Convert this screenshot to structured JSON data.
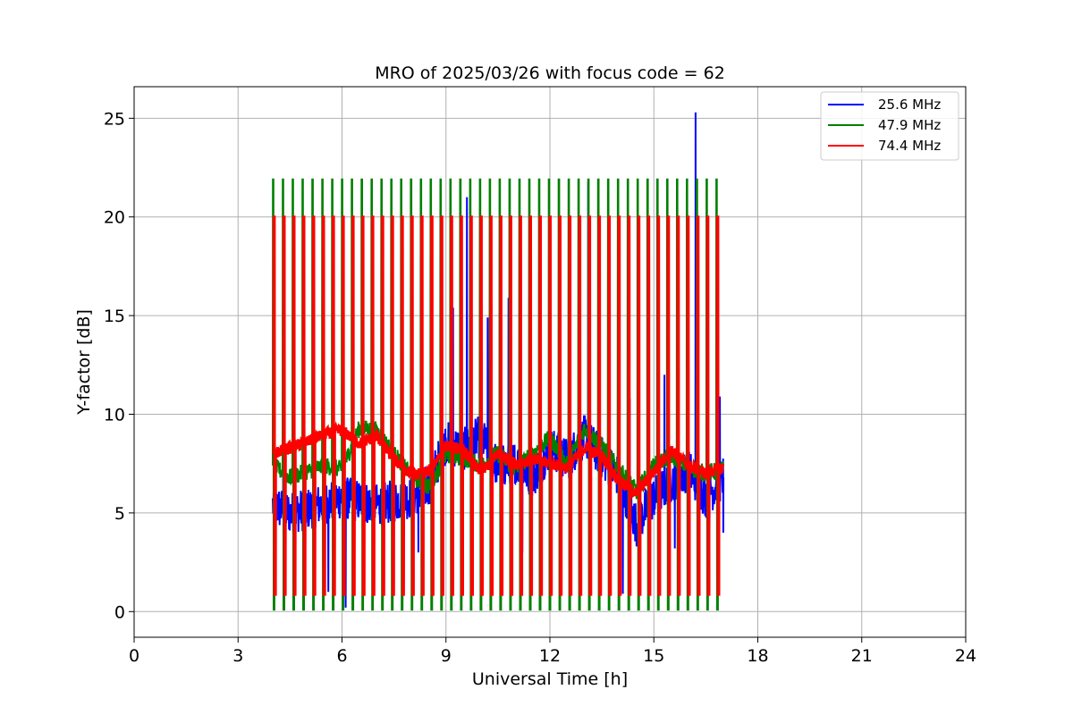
{
  "chart_data": {
    "type": "line",
    "title": "MRO of 2025/03/26 with focus code = 62",
    "xlabel": "Universal Time [h]",
    "ylabel": "Y-factor [dB]",
    "xlim": [
      0,
      24
    ],
    "ylim": [
      -1.3,
      26.6
    ],
    "x_ticks": [
      0,
      3,
      6,
      9,
      12,
      15,
      18,
      21,
      24
    ],
    "y_ticks": [
      0,
      5,
      10,
      15,
      20,
      25
    ],
    "grid": true,
    "legend_position": "top-right",
    "calibration_spikes": {
      "start": 4.0,
      "end": 16.8,
      "count": 46,
      "period_h": 0.2844,
      "high_green_db": 21.9,
      "high_red_db": 20.0,
      "low_green_db": 0.1,
      "low_red_db": 0.8
    },
    "series": [
      {
        "name": "25.6 MHz",
        "color": "#0000ff",
        "x": [
          4.0,
          4.5,
          5.0,
          5.5,
          6.0,
          6.5,
          7.0,
          7.5,
          8.0,
          8.5,
          9.0,
          9.5,
          10.0,
          10.5,
          11.0,
          11.5,
          12.0,
          12.5,
          13.0,
          13.5,
          14.0,
          14.5,
          15.0,
          15.5,
          16.0,
          16.5,
          17.0
        ],
        "values": [
          5.4,
          5.0,
          5.2,
          5.5,
          5.8,
          5.6,
          5.4,
          5.6,
          5.8,
          6.4,
          8.6,
          8.2,
          8.9,
          7.3,
          7.6,
          6.8,
          8.3,
          7.7,
          8.9,
          7.8,
          6.8,
          4.4,
          5.8,
          6.6,
          7.2,
          5.8,
          6.8
        ],
        "spikes": [
          [
            4.3,
            11.0
          ],
          [
            6.6,
            11.5
          ],
          [
            8.6,
            11.5
          ],
          [
            9.2,
            15.4
          ],
          [
            9.6,
            21.0
          ],
          [
            10.2,
            14.9
          ],
          [
            10.8,
            15.9
          ],
          [
            11.7,
            19.6
          ],
          [
            12.3,
            11.5
          ],
          [
            13.1,
            21.8
          ],
          [
            14.3,
            10.8
          ],
          [
            15.3,
            12.0
          ],
          [
            16.2,
            25.3
          ],
          [
            16.9,
            10.9
          ]
        ],
        "dips": [
          [
            4.6,
            4.3
          ],
          [
            5.6,
            1.0
          ],
          [
            6.1,
            0.2
          ],
          [
            8.2,
            3.0
          ],
          [
            11.2,
            3.0
          ],
          [
            14.1,
            0.9
          ],
          [
            14.6,
            2.1
          ],
          [
            15.6,
            3.2
          ],
          [
            16.6,
            3.7
          ],
          [
            17.0,
            4.0
          ]
        ]
      },
      {
        "name": "47.9 MHz",
        "color": "#008000",
        "x": [
          4.0,
          4.5,
          5.0,
          5.5,
          6.0,
          6.5,
          7.0,
          7.5,
          8.0,
          8.5,
          9.0,
          9.5,
          10.0,
          10.5,
          11.0,
          11.5,
          12.0,
          12.5,
          13.0,
          13.5,
          14.0,
          14.5,
          15.0,
          15.5,
          16.0,
          16.5,
          17.0
        ],
        "values": [
          7.4,
          6.8,
          7.1,
          7.4,
          7.2,
          9.3,
          9.2,
          8.0,
          6.9,
          6.3,
          7.9,
          7.8,
          7.4,
          8.0,
          7.2,
          8.0,
          8.8,
          7.5,
          9.3,
          8.4,
          7.2,
          6.1,
          7.4,
          7.9,
          7.3,
          7.0,
          7.2
        ]
      },
      {
        "name": "74.4 MHz",
        "color": "#ff0000",
        "x": [
          4.0,
          4.5,
          5.0,
          5.5,
          6.0,
          6.5,
          7.0,
          7.5,
          8.0,
          8.5,
          9.0,
          9.5,
          10.0,
          10.5,
          11.0,
          11.5,
          12.0,
          12.5,
          13.0,
          13.5,
          14.0,
          14.5,
          15.0,
          15.5,
          16.0,
          16.5,
          17.0
        ],
        "values": [
          8.0,
          8.3,
          8.6,
          9.0,
          9.2,
          8.5,
          8.9,
          7.7,
          6.9,
          7.1,
          8.4,
          8.2,
          7.0,
          8.0,
          7.5,
          7.7,
          7.5,
          7.3,
          8.3,
          7.9,
          6.6,
          6.0,
          7.1,
          8.2,
          7.4,
          7.0,
          7.3
        ]
      }
    ]
  }
}
